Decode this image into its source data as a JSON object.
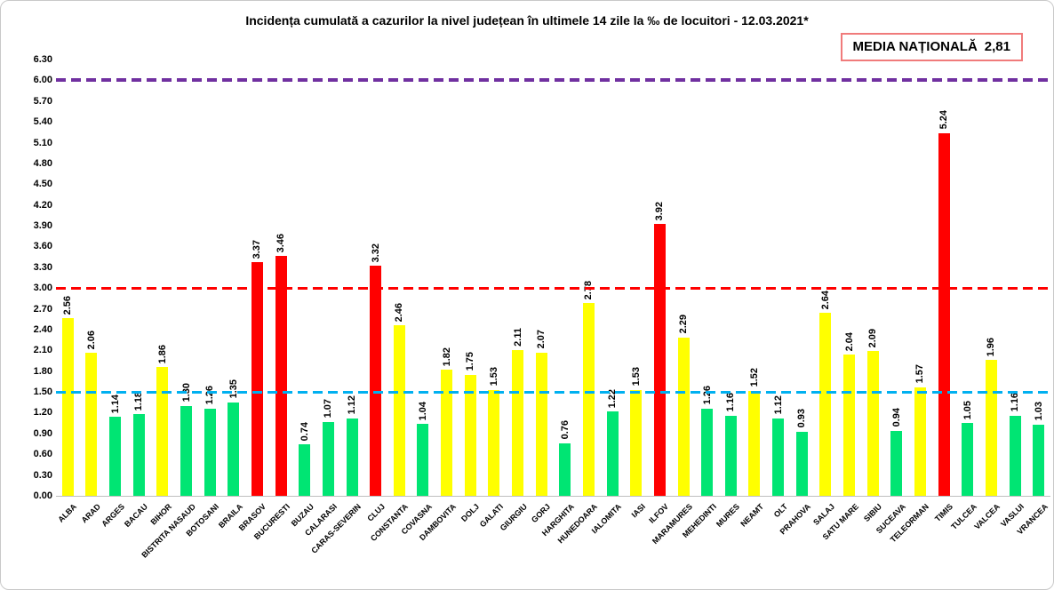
{
  "title": "Incidența cumulată a cazurilor la nivel județean în ultimele 14 zile la ‰ de locuitori - 12.03.2021*",
  "national_average_box": {
    "label": "MEDIA NAȚIONALĂ",
    "value": "2,81"
  },
  "chart_data": {
    "type": "bar",
    "title": "Incidența cumulată a cazurilor la nivel județean în ultimele 14 zile la ‰ de locuitori - 12.03.2021*",
    "categories": [
      "ALBA",
      "ARAD",
      "ARGES",
      "BACAU",
      "BIHOR",
      "BISTRITA NASAUD",
      "BOTOSANI",
      "BRAILA",
      "BRASOV",
      "BUCURESTI",
      "BUZAU",
      "CALARASI",
      "CARAS-SEVERIN",
      "CLUJ",
      "CONSTANTA",
      "COVASNA",
      "DAMBOVITA",
      "DOLJ",
      "GALATI",
      "GIURGIU",
      "GORJ",
      "HARGHITA",
      "HUNEDOARA",
      "IALOMITA",
      "IASI",
      "ILFOV",
      "MARAMURES",
      "MEHEDINTI",
      "MURES",
      "NEAMT",
      "OLT",
      "PRAHOVA",
      "SALAJ",
      "SATU MARE",
      "SIBIU",
      "SUCEAVA",
      "TELEORMAN",
      "TIMIS",
      "TULCEA",
      "VALCEA",
      "VASLUI",
      "VRANCEA"
    ],
    "values": [
      2.56,
      2.06,
      1.14,
      1.18,
      1.86,
      1.3,
      1.26,
      1.35,
      3.37,
      3.46,
      0.74,
      1.07,
      1.12,
      3.32,
      2.46,
      1.04,
      1.82,
      1.75,
      1.53,
      2.11,
      2.07,
      0.76,
      2.78,
      1.22,
      1.53,
      3.92,
      2.29,
      1.26,
      1.16,
      1.52,
      1.12,
      0.93,
      2.64,
      2.04,
      2.09,
      0.94,
      1.57,
      5.24,
      1.05,
      1.96,
      1.16,
      1.03
    ],
    "bar_colors": [
      "yellow",
      "yellow",
      "green",
      "green",
      "yellow",
      "green",
      "green",
      "green",
      "red",
      "red",
      "green",
      "green",
      "green",
      "red",
      "yellow",
      "green",
      "yellow",
      "yellow",
      "yellow",
      "yellow",
      "yellow",
      "green",
      "yellow",
      "green",
      "yellow",
      "red",
      "yellow",
      "green",
      "green",
      "yellow",
      "green",
      "green",
      "yellow",
      "yellow",
      "yellow",
      "green",
      "yellow",
      "red",
      "green",
      "yellow",
      "green",
      "green"
    ],
    "palette": {
      "yellow": "#FFFF00",
      "green": "#00E573",
      "red": "#FF0000"
    },
    "ylim": [
      0,
      6.3
    ],
    "ytick_step": 0.3,
    "ytick_labels": [
      "0.00",
      "0.30",
      "0.60",
      "0.90",
      "1.20",
      "1.50",
      "1.80",
      "2.10",
      "2.40",
      "2.70",
      "3.00",
      "3.30",
      "3.60",
      "3.90",
      "4.20",
      "4.50",
      "4.80",
      "5.10",
      "5.40",
      "5.70",
      "6.00",
      "6.30"
    ],
    "reference_lines": [
      {
        "value": 6.0,
        "color": "#7030A0",
        "style": "dashed"
      },
      {
        "value": 3.0,
        "color": "#FF0000",
        "style": "dashed"
      },
      {
        "value": 1.5,
        "color": "#00B0F0",
        "style": "dashed"
      }
    ],
    "grid": false,
    "legend": false
  }
}
